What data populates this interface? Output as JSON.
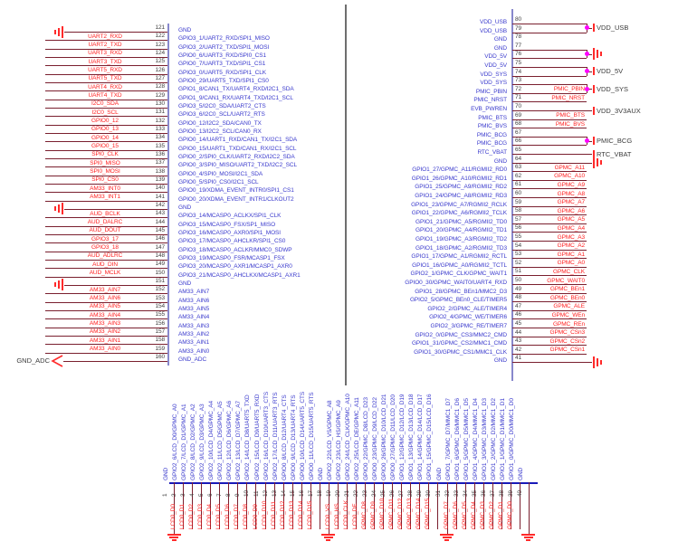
{
  "colors": {
    "wire": "#7a1f2e",
    "net_label": "#ff2020",
    "pin_name": "#3a3acd",
    "pin_number": "#3f3f3f",
    "ground": "#ff2a2a",
    "junction": "#ff00ff",
    "body_edge": "#8888cc",
    "bottom_edge": "#1a1ab8",
    "divider": "#6e6e6e",
    "port_text": "#3b3b3b"
  },
  "left_block": {
    "pins": [
      {
        "num": 121,
        "name": "GND",
        "net": "",
        "gnd": true
      },
      {
        "num": 122,
        "name": "GPIO3_1/UART2_RXD/SPI1_MISO",
        "net": "UART2_RXD"
      },
      {
        "num": 123,
        "name": "GPIO3_2/UART2_TXD/SPI1_MOSI",
        "net": "UART2_TXD"
      },
      {
        "num": 124,
        "name": "GPIO0_6/UART3_RXD/SPI0_CS1",
        "net": "UART3_RXD"
      },
      {
        "num": 125,
        "name": "GPIO0_7/UART3_TXD/SPI1_CS1",
        "net": "UART3_TXD"
      },
      {
        "num": 126,
        "name": "GPIO3_0/UART5_RXD/SPI1_CLK",
        "net": "UART5_RXD"
      },
      {
        "num": 127,
        "name": "GPIO0_29/UART5_TXD/SPI1_CS0",
        "net": "UART5_TXD"
      },
      {
        "num": 128,
        "name": "GPIO1_8/CAN1_TX/UART4_RXD/I2C1_SDA",
        "net": "UART4_RXD"
      },
      {
        "num": 129,
        "name": "GPIO1_9/CAN1_RX/UART4_TXD/I2C1_SCL",
        "net": "UART4_TXD"
      },
      {
        "num": 130,
        "name": "GPIO3_5/I2C0_SDA/UART2_CTS",
        "net": "I2C0_SDA"
      },
      {
        "num": 131,
        "name": "GPIO3_6/I2C0_SCL/UART2_RTS",
        "net": "I2C0_SCL"
      },
      {
        "num": 132,
        "name": "GPIO0_12/I2C2_SDA/CAN0_TX",
        "net": "GPIO0_12"
      },
      {
        "num": 133,
        "name": "GPIO0_13/I2C2_SCL/CAN0_RX",
        "net": "GPIO0_13"
      },
      {
        "num": 134,
        "name": "GPIO0_14/UART1_RXD/CAN1_TX/I2C1_SDA",
        "net": "GPIO0_14"
      },
      {
        "num": 135,
        "name": "GPIO0_15/UART1_TXD/CAN1_RX/I2C1_SCL",
        "net": "GPIO0_15"
      },
      {
        "num": 136,
        "name": "GPIO0_2/SPI0_CLK/UART2_RXD/I2C2_SDA",
        "net": "SPI0_CLK"
      },
      {
        "num": 137,
        "name": "GPIO0_3/SPI0_MISO/UART2_TXD/I2C2_SCL",
        "net": "SPI0_MISO"
      },
      {
        "num": 138,
        "name": "GPIO0_4/SPI0_MOSI/I2C1_SDA",
        "net": "SPI0_MOSI"
      },
      {
        "num": 139,
        "name": "GPIO0_5/SPI0_CS0/I2C1_SCL",
        "net": "SPI0_CS0"
      },
      {
        "num": 140,
        "name": "GPIO0_19/XDMA_EVENT_INTR0/SPI1_CS1",
        "net": "AM33_INT0"
      },
      {
        "num": 141,
        "name": "GPIO0_20/XDMA_EVENT_INTR1/CLKOUT2",
        "net": "AM33_INT1"
      },
      {
        "num": 142,
        "name": "GND",
        "net": "",
        "gnd": true
      },
      {
        "num": 143,
        "name": "GPIO3_14/MCASP0_ACLKX/SPI1_CLK",
        "net": "AUD_BCLK"
      },
      {
        "num": 144,
        "name": "GPIO3_15/MCASP0_FSX/SP1_MISO",
        "net": "AUD_DALRC"
      },
      {
        "num": 145,
        "name": "GPIO3_16/MCASP0_AXR0/SPI1_MOSI",
        "net": "AUD_DOUT"
      },
      {
        "num": 146,
        "name": "GPIO3_17/MCASP0_AHCLKR/SPI1_CS0",
        "net": "GPIO3_17"
      },
      {
        "num": 147,
        "name": "GPIO3_18/MCASP0_ACLKR/MMC0_SDWP",
        "net": "GPIO3_18"
      },
      {
        "num": 148,
        "name": "GPIO3_19/MCASP0_FSR/MCASP1_FSX",
        "net": "AUD_ADLRC"
      },
      {
        "num": 149,
        "name": "GPIO3_20/MCASP0_AXR1/MCASP1_AXR0",
        "net": "AUD_DIN"
      },
      {
        "num": 150,
        "name": "GPIO3_21/MCASP0_AHCLKX/MCASP1_AXR1",
        "net": "AUD_MCLK"
      },
      {
        "num": 151,
        "name": "GND",
        "net": "",
        "gnd": true
      },
      {
        "num": 152,
        "name": "AM33_AIN7",
        "net": "AM33_AIN7"
      },
      {
        "num": 153,
        "name": "AM33_AIN6",
        "net": "AM33_AIN6"
      },
      {
        "num": 154,
        "name": "AM33_AIN5",
        "net": "AM33_AIN5"
      },
      {
        "num": 155,
        "name": "AM33_AIN4",
        "net": "AM33_AIN4"
      },
      {
        "num": 156,
        "name": "AM33_AIN3",
        "net": "AM33_AIN3"
      },
      {
        "num": 157,
        "name": "AM33_AIN2",
        "net": "AM33_AIN2"
      },
      {
        "num": 158,
        "name": "AM33_AIN1",
        "net": "AM33_AIN1"
      },
      {
        "num": 159,
        "name": "AM33_AIN0",
        "net": "AM33_AIN0"
      },
      {
        "num": 160,
        "name": "GND_ADC",
        "net": "",
        "port": "GND_ADC"
      }
    ]
  },
  "right_block": {
    "pins": [
      {
        "num": 80,
        "name": "VDD_USB",
        "net": "",
        "wire": true
      },
      {
        "num": 79,
        "name": "VDD_USB",
        "net": "",
        "wire": true
      },
      {
        "num": 78,
        "name": "GND",
        "net": "",
        "wire": false
      },
      {
        "num": 77,
        "name": "GND",
        "net": "",
        "wire": true
      },
      {
        "num": 76,
        "name": "VDD_5V",
        "net": "",
        "wire": true
      },
      {
        "num": 75,
        "name": "VDD_5V",
        "net": "",
        "wire": true
      },
      {
        "num": 74,
        "name": "VDD_SYS",
        "net": "",
        "wire": true
      },
      {
        "num": 73,
        "name": "VDD_SYS",
        "net": "",
        "wire": true
      },
      {
        "num": 72,
        "name": "PMIC_PBIN",
        "net": "PMIC_PBIN",
        "wire": true
      },
      {
        "num": 71,
        "name": "PMIC_NRST",
        "net": "PMIC_NRST",
        "wire": true
      },
      {
        "num": 70,
        "name": "EVB_PWREN",
        "net": "",
        "wire": true
      },
      {
        "num": 69,
        "name": "PMIC_BTS",
        "net": "PMIC_BTS",
        "wire": true
      },
      {
        "num": 68,
        "name": "PMIC_BVS",
        "net": "PMIC_BVS",
        "wire": true
      },
      {
        "num": 67,
        "name": "PMIC_BCG",
        "net": "",
        "wire": true
      },
      {
        "num": 66,
        "name": "PMIC_BCG",
        "net": "",
        "wire": true
      },
      {
        "num": 65,
        "name": "RTC_VBAT",
        "net": "",
        "wire": true
      },
      {
        "num": 64,
        "name": "GND",
        "net": "",
        "wire": true
      },
      {
        "num": 63,
        "name": "GPIO1_27/GPMC_A11/RGMII2_RD0",
        "net": "GPMC_A11",
        "wire": true
      },
      {
        "num": 62,
        "name": "GPIO1_26/GPMC_A10/RGMII2_RD1",
        "net": "GPMC_A10",
        "wire": true
      },
      {
        "num": 61,
        "name": "GPIO1_25/GPMC_A9/RGMII2_RD2",
        "net": "GPMC_A9",
        "wire": true
      },
      {
        "num": 60,
        "name": "GPIO1_24/GPMC_A8/RGMII2_RD3",
        "net": "GPMC_A8",
        "wire": true
      },
      {
        "num": 59,
        "name": "GPIO1_23/GPMC_A7/RGMII2_RCLK",
        "net": "GPMC_A7",
        "wire": true
      },
      {
        "num": 58,
        "name": "GPIO1_22/GPMC_A6/RGMII2_TCLK",
        "net": "GPMC_A6",
        "wire": true
      },
      {
        "num": 57,
        "name": "GPIO1_21/GPMC_A5/RGMII2_TD0",
        "net": "GPMC_A5",
        "wire": true
      },
      {
        "num": 56,
        "name": "GPIO1_20/GPMC_A4/RGMII2_TD1",
        "net": "GPMC_A4",
        "wire": true
      },
      {
        "num": 55,
        "name": "GPIO1_19/GPMC_A3/RGMII2_TD2",
        "net": "GPMC_A3",
        "wire": true
      },
      {
        "num": 54,
        "name": "GPIO1_18/GPMC_A2/RGMII2_TD3",
        "net": "GPMC_A2",
        "wire": true
      },
      {
        "num": 53,
        "name": "GPIO1_17/GPMC_A1/RGMII2_RCTL",
        "net": "GPMC_A1",
        "wire": true
      },
      {
        "num": 52,
        "name": "GPIO1_16/GPMC_A0/RGMII2_TCTL",
        "net": "GPMC_A0",
        "wire": true
      },
      {
        "num": 51,
        "name": "GPIO2_1/GPMC_CLK/GPMC_WAIT1",
        "net": "GPMC_CLK",
        "wire": true
      },
      {
        "num": 50,
        "name": "GPIO0_30/GPMC_WAIT0/UART4_RXD",
        "net": "GPMC_WAIT0",
        "wire": true
      },
      {
        "num": 49,
        "name": "GPIO1_28/GPMC_BEn1/MMC2_D3",
        "net": "GPMC_BEn1",
        "wire": true
      },
      {
        "num": 48,
        "name": "GPIO2_5/GPMC_BEn0_CLE/TIMER5",
        "net": "GPMC_BEn0",
        "wire": true
      },
      {
        "num": 47,
        "name": "GPIO2_2/GPMC_ALE/TIMER4",
        "net": "GPMC_ALE",
        "wire": true
      },
      {
        "num": 46,
        "name": "GPIO2_4/GPMC_WE/TIMER6",
        "net": "GPMC_WEn",
        "wire": true
      },
      {
        "num": 45,
        "name": "GPIO2_3/GPMC_RE/TIMER7",
        "net": "GPMC_REn",
        "wire": true
      },
      {
        "num": 44,
        "name": "GPIO2_0/GPMC_CS3/MMC2_CMD",
        "net": "GPMC_CSn3",
        "wire": true
      },
      {
        "num": 43,
        "name": "GPIO1_31/GPMC_CS2/MMC1_CMD",
        "net": "GPMC_CSn2",
        "wire": true
      },
      {
        "num": 42,
        "name": "GPIO1_30/GPMC_CS1/MMC1_CLK",
        "net": "GPMC_CSn1",
        "wire": true
      },
      {
        "num": 41,
        "name": "GND",
        "net": "",
        "wire": true
      }
    ],
    "ports": [
      {
        "label": "VDD_USB",
        "type": "power",
        "pins": [
          80,
          79
        ]
      },
      {
        "label": "",
        "type": "ground",
        "pins": [
          77,
          76
        ]
      },
      {
        "label": "VDD_5V",
        "type": "power",
        "pins": [
          75,
          74
        ]
      },
      {
        "label": "VDD_SYS",
        "type": "power",
        "pins": [
          73,
          72
        ]
      },
      {
        "label": "VDD_3V3AUX",
        "type": "power",
        "pins": [
          70
        ]
      },
      {
        "label": "PMIC_BCG",
        "type": "power",
        "pins": [
          67,
          66
        ]
      },
      {
        "label": "RTC_VBAT",
        "type": "power",
        "pins": [
          65
        ]
      },
      {
        "label": "",
        "type": "ground",
        "pins": [
          64
        ]
      },
      {
        "label": "",
        "type": "ground",
        "pins": [
          41
        ]
      }
    ]
  },
  "bottom_block": {
    "pins": [
      {
        "num": 1,
        "name": "GND",
        "net": "",
        "gnd": true
      },
      {
        "num": 2,
        "name": "GPIO2_6/LCD_D0/GPMC_A0",
        "net": "LCD0_D0"
      },
      {
        "num": 3,
        "name": "GPIO2_7/LCD_D1/GPMC_A1",
        "net": "LCD0_D1"
      },
      {
        "num": 4,
        "name": "GPIO2_8/LCD_D2/GPMC_A2",
        "net": "LCD0_D2"
      },
      {
        "num": 5,
        "name": "GPIO2_9/LCD_D3/GPMC_A3",
        "net": "LCD0_D3"
      },
      {
        "num": 6,
        "name": "GPIO2_10/LCD_D4/GPMC_A4",
        "net": "LCD0_D4"
      },
      {
        "num": 7,
        "name": "GPIO2_11/LCD_D5/GPMC_A5",
        "net": "LCD0_D5"
      },
      {
        "num": 8,
        "name": "GPIO2_12/LCD_D6/GPMC_A6",
        "net": "LCD0_D6"
      },
      {
        "num": 9,
        "name": "GPIO2_13/LCD_D7/GPMC_A7",
        "net": "LCD0_D7"
      },
      {
        "num": 10,
        "name": "GPIO2_14/LCD_D8/UART5_TXD",
        "net": "LCD0_D8"
      },
      {
        "num": 11,
        "name": "GPIO2_15/LCD_D9/UART5_RXD",
        "net": "LCD0_D9"
      },
      {
        "num": 12,
        "name": "GPIO2_16/LCD_D10/UART3_CTS",
        "net": "LCD0_D10"
      },
      {
        "num": 13,
        "name": "GPIO2_17/LCD_D11/UART3_RTS",
        "net": "LCD0_D11"
      },
      {
        "num": 14,
        "name": "GPIO0_8/LCD_D12/UART4_CTS",
        "net": "LCD0_D12"
      },
      {
        "num": 15,
        "name": "GPIO0_9/LCD_D13/UART4_RTS",
        "net": "LCD0_D13"
      },
      {
        "num": 16,
        "name": "GPIO0_10/LCD_D14/UART5_CTS",
        "net": "LCD0_D14"
      },
      {
        "num": 17,
        "name": "GPIO0_11/LCD_D15/UART5_RTS",
        "net": "LCD0_D15"
      },
      {
        "num": 18,
        "name": "GND",
        "net": "",
        "gnd": true
      },
      {
        "num": 19,
        "name": "GPIO2_22/LCD_VS/GPMC_A8",
        "net": "LCD0_VS"
      },
      {
        "num": 20,
        "name": "GPIO2_23/LCD_HS/GPMC_A9",
        "net": "LCD0_HS"
      },
      {
        "num": 21,
        "name": "GPIO2_24/LCD_CLK/GPMC_A10",
        "net": "LCD0_CLK"
      },
      {
        "num": 22,
        "name": "GPIO2_25/LCD_DE/GPMC_A11",
        "net": "LCD0_DE"
      },
      {
        "num": 23,
        "name": "GPIO0_22/GPMC_D8/LCD_D23",
        "net": "GPMC_D8"
      },
      {
        "num": 24,
        "name": "GPIO0_23/GPMC_D9/LCD_D22",
        "net": "GPMC_D9"
      },
      {
        "num": 25,
        "name": "GPIO0_26/GPMC_D10/LCD_D21",
        "net": "GPMC_D10"
      },
      {
        "num": 26,
        "name": "GPIO0_27/GPMC_D11/LCD_D20",
        "net": "GPMC_D11"
      },
      {
        "num": 27,
        "name": "GPIO1_12/GPMC_D12/LCD_D19",
        "net": "GPMC_D12"
      },
      {
        "num": 28,
        "name": "GPIO1_13/GPMC_D13/LCD_D18",
        "net": "GPMC_D13"
      },
      {
        "num": 29,
        "name": "GPIO1_14/GPMC_D14/LCD_D17",
        "net": "GPMC_D14"
      },
      {
        "num": 30,
        "name": "GPIO1_15/GPMC_D15/LCD_D16",
        "net": "GPMC_D15"
      },
      {
        "num": 31,
        "name": "GND",
        "net": "",
        "gnd": true
      },
      {
        "num": 32,
        "name": "GPIO1_7/GPMC_D7/MMC1_D7",
        "net": "GPMC_D7"
      },
      {
        "num": 33,
        "name": "GPIO1_6/GPMC_D6/MMC1_D6",
        "net": "GPMC_D6"
      },
      {
        "num": 34,
        "name": "GPIO1_5/GPMC_D5/MMC1_D5",
        "net": "GPMC_D5"
      },
      {
        "num": 35,
        "name": "GPIO1_4/GPMC_D4/MMC1_D4",
        "net": "GPMC_D4"
      },
      {
        "num": 36,
        "name": "GPIO1_3/GPMC_D3/MMC1_D3",
        "net": "GPMC_D3"
      },
      {
        "num": 37,
        "name": "GPIO1_2/GPMC_D2/MMC1_D2",
        "net": "GPMC_D2"
      },
      {
        "num": 38,
        "name": "GPIO1_1/GPMC_D1/MMC1_D1",
        "net": "GPMC_D1"
      },
      {
        "num": 39,
        "name": "GPIO1_0/GPMC_D0/MMC1_D0",
        "net": "GPMC_D0"
      },
      {
        "num": 40,
        "name": "GND",
        "net": "",
        "gnd": true
      }
    ]
  }
}
